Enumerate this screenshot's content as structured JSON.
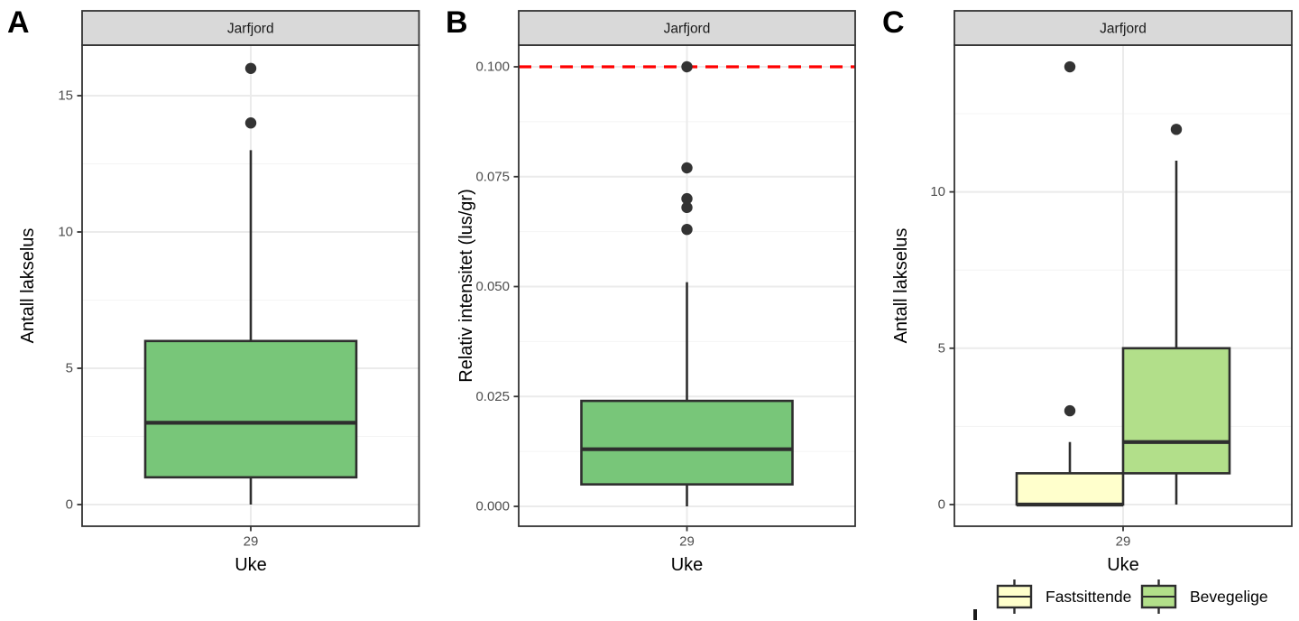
{
  "panels": [
    {
      "letter": "A"
    },
    {
      "letter": "B"
    },
    {
      "letter": "C"
    }
  ],
  "theme": {
    "strip_fill": "#D9D9D9",
    "strip_text_color": "#1a1a1a",
    "panel_border": "#333333",
    "grid_major": "#EBEBEB",
    "grid_minor": "#F4F4F4",
    "tick_text_color": "#4D4D4D",
    "axis_title_color": "#000000",
    "box_stroke": "#2e2e2e",
    "outlier_color": "#333333"
  },
  "chart_data": [
    {
      "id": "A",
      "type": "boxplot",
      "facet_title": "Jarfjord",
      "xlabel": "Uke",
      "ylabel": "Antall lakselus",
      "x_categories": [
        "29"
      ],
      "y_ticks": [
        0,
        5,
        10,
        15
      ],
      "y_tick_labels": [
        "0",
        "5",
        "10",
        "15"
      ],
      "ylim": [
        -0.8,
        16.85
      ],
      "grid": "major+minor horizontal, major vertical at category",
      "legend_position": "none",
      "series": [
        {
          "name": "Antall lakselus",
          "fill": "#78C679",
          "lower_whisker": 0,
          "q1": 1,
          "median": 3,
          "q3": 6,
          "upper_whisker": 13,
          "outliers": [
            14,
            16
          ]
        }
      ]
    },
    {
      "id": "B",
      "type": "boxplot",
      "facet_title": "Jarfjord",
      "xlabel": "Uke",
      "ylabel": "Relativ intensitet (lus/gr)",
      "x_categories": [
        "29"
      ],
      "y_ticks": [
        0,
        0.025,
        0.05,
        0.075,
        0.1
      ],
      "y_tick_labels": [
        "0.000",
        "0.025",
        "0.050",
        "0.075",
        "0.100"
      ],
      "ylim": [
        -0.0045,
        0.1049
      ],
      "grid": "major+minor horizontal, major vertical at category",
      "legend_position": "none",
      "ref_line": {
        "y": 0.1,
        "color": "#FF0000",
        "style": "dashed"
      },
      "series": [
        {
          "name": "Relativ intensitet",
          "fill": "#78C679",
          "lower_whisker": 0,
          "q1": 0.005,
          "median": 0.013,
          "q3": 0.024,
          "upper_whisker": 0.051,
          "outliers": [
            0.063,
            0.068,
            0.07,
            0.077,
            0.1
          ]
        }
      ]
    },
    {
      "id": "C",
      "type": "boxplot",
      "facet_title": "Jarfjord",
      "xlabel": "Uke",
      "ylabel": "Antall lakselus",
      "x_categories": [
        "29"
      ],
      "y_ticks": [
        0,
        5,
        10
      ],
      "y_tick_labels": [
        "0",
        "5",
        "10"
      ],
      "ylim": [
        -0.7,
        14.69
      ],
      "grid": "major+minor horizontal, major vertical at category",
      "legend_position": "bottom",
      "series": [
        {
          "name": "Fastsittende",
          "fill": "#FFFFCC",
          "lower_whisker": 0,
          "q1": 0,
          "median": 0,
          "q3": 1,
          "upper_whisker": 2,
          "outliers": [
            3,
            14
          ]
        },
        {
          "name": "Bevegelige",
          "fill": "#B2DF8A",
          "lower_whisker": 0,
          "q1": 1,
          "median": 2,
          "q3": 5,
          "upper_whisker": 11,
          "outliers": [
            12
          ]
        }
      ],
      "legend": {
        "entries": [
          {
            "label": "Fastsittende",
            "fill": "#FFFFCC"
          },
          {
            "label": "Bevegelige",
            "fill": "#B2DF8A"
          }
        ]
      }
    }
  ]
}
